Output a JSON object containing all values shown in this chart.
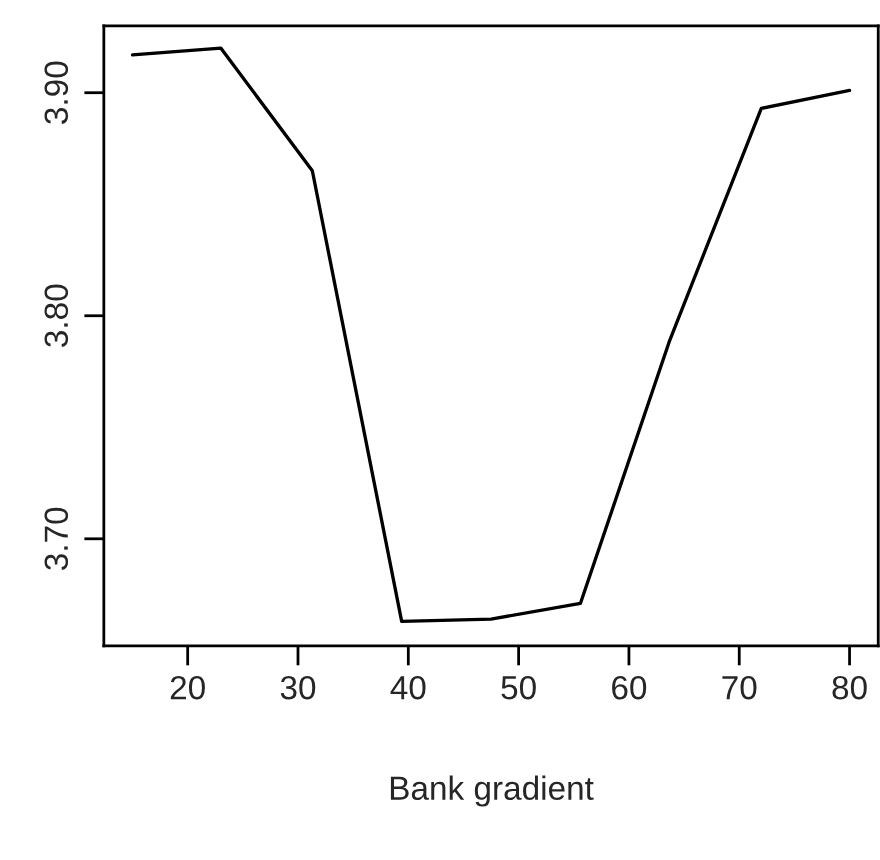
{
  "chart_data": {
    "type": "line",
    "xlabel": "Bank gradient",
    "x": [
      15,
      23,
      31.3,
      39.4,
      47.5,
      55.6,
      63.7,
      72.0,
      80
    ],
    "series": [
      {
        "color": "#000000",
        "values": [
          3.917,
          3.92,
          3.865,
          3.663,
          3.664,
          3.671,
          3.789,
          3.893,
          3.901
        ]
      }
    ],
    "xlim": [
      12.4,
      82.6
    ],
    "ylim": [
      3.652,
      3.93
    ],
    "xticks": [
      20,
      30,
      40,
      50,
      60,
      70,
      80
    ],
    "yticks": [
      {
        "value": 3.7,
        "label": "3.70"
      },
      {
        "value": 3.8,
        "label": "3.80"
      },
      {
        "value": 3.9,
        "label": "3.90"
      }
    ],
    "grid": false,
    "legend": false,
    "marker": "none",
    "line_style": "solid"
  }
}
